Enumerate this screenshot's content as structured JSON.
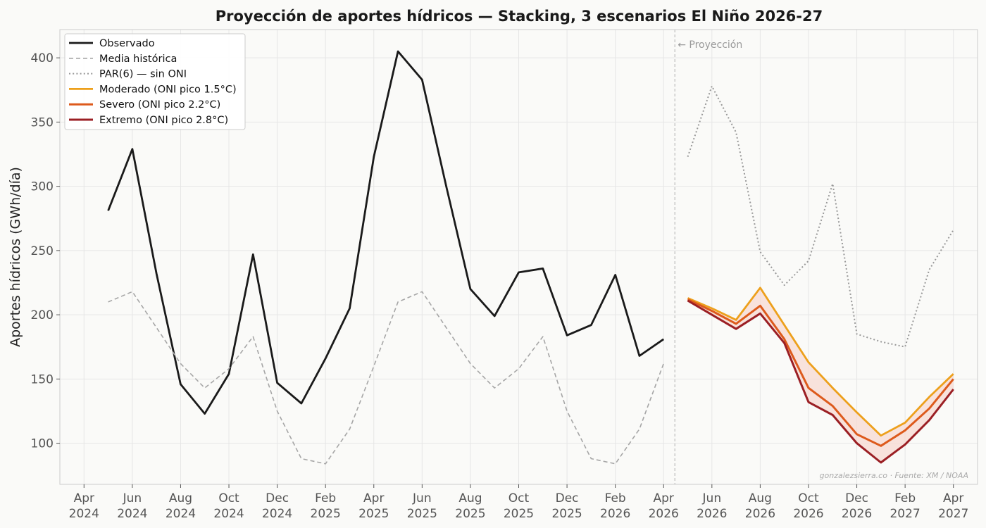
{
  "chart_data": {
    "type": "line",
    "title": "Proyección de aportes hídricos — Stacking, 3 escenarios El Niño 2026-27",
    "xlabel": "",
    "ylabel": "Aportes hídricos (GWh/día)",
    "ylim": [
      68,
      422
    ],
    "xlim": [
      "2024-03",
      "2027-05"
    ],
    "yticks": [
      100,
      150,
      200,
      250,
      300,
      350,
      400
    ],
    "xticks": [
      {
        "date": "2024-04",
        "month": "Apr",
        "year": "2024"
      },
      {
        "date": "2024-06",
        "month": "Jun",
        "year": "2024"
      },
      {
        "date": "2024-08",
        "month": "Aug",
        "year": "2024"
      },
      {
        "date": "2024-10",
        "month": "Oct",
        "year": "2024"
      },
      {
        "date": "2024-12",
        "month": "Dec",
        "year": "2024"
      },
      {
        "date": "2025-02",
        "month": "Feb",
        "year": "2025"
      },
      {
        "date": "2025-04",
        "month": "Apr",
        "year": "2025"
      },
      {
        "date": "2025-06",
        "month": "Jun",
        "year": "2025"
      },
      {
        "date": "2025-08",
        "month": "Aug",
        "year": "2025"
      },
      {
        "date": "2025-10",
        "month": "Oct",
        "year": "2025"
      },
      {
        "date": "2025-12",
        "month": "Dec",
        "year": "2025"
      },
      {
        "date": "2026-02",
        "month": "Feb",
        "year": "2026"
      },
      {
        "date": "2026-04",
        "month": "Apr",
        "year": "2026"
      },
      {
        "date": "2026-06",
        "month": "Jun",
        "year": "2026"
      },
      {
        "date": "2026-08",
        "month": "Aug",
        "year": "2026"
      },
      {
        "date": "2026-10",
        "month": "Oct",
        "year": "2026"
      },
      {
        "date": "2026-12",
        "month": "Dec",
        "year": "2026"
      },
      {
        "date": "2027-02",
        "month": "Feb",
        "year": "2027"
      },
      {
        "date": "2027-04",
        "month": "Apr",
        "year": "2027"
      }
    ],
    "grid": true,
    "legend_position": "top-left",
    "projection_start": "2026-04-15",
    "projection_label": "← Proyección",
    "credit": "gonzalezsierra.co · Fuente: XM / NOAA",
    "band": {
      "between": [
        "Moderado (ONI pico 1.5°C)",
        "Extremo (ONI pico 2.8°C)"
      ],
      "color": "#f7d9d3"
    },
    "series": [
      {
        "name": "Observado",
        "color": "#1a1a1a",
        "style": "solid",
        "width": 2.8,
        "x": [
          "2024-05",
          "2024-06",
          "2024-07",
          "2024-08",
          "2024-09",
          "2024-10",
          "2024-11",
          "2024-12",
          "2025-01",
          "2025-02",
          "2025-03",
          "2025-04",
          "2025-05",
          "2025-06",
          "2025-07",
          "2025-08",
          "2025-09",
          "2025-10",
          "2025-11",
          "2025-12",
          "2026-01",
          "2026-02",
          "2026-03",
          "2026-04"
        ],
        "y": [
          281,
          329,
          232,
          146,
          123,
          154,
          247,
          147,
          131,
          166,
          205,
          323,
          405,
          383,
          300,
          220,
          199,
          233,
          236,
          184,
          192,
          231,
          168,
          181
        ]
      },
      {
        "name": "Media histórica",
        "color": "#a6a6a6",
        "style": "dashed",
        "width": 1.6,
        "x": [
          "2024-05",
          "2024-06",
          "2024-07",
          "2024-08",
          "2024-09",
          "2024-10",
          "2024-11",
          "2024-12",
          "2025-01",
          "2025-02",
          "2025-03",
          "2025-04",
          "2025-05",
          "2025-06",
          "2025-07",
          "2025-08",
          "2025-09",
          "2025-10",
          "2025-11",
          "2025-12",
          "2026-01",
          "2026-02",
          "2026-03",
          "2026-04"
        ],
        "y": [
          210,
          218,
          190,
          162,
          143,
          158,
          183,
          125,
          88,
          84,
          111,
          160,
          210,
          218,
          190,
          162,
          143,
          158,
          183,
          125,
          88,
          84,
          111,
          162
        ]
      },
      {
        "name": "PAR(6) — sin ONI",
        "color": "#999999",
        "style": "dotted",
        "width": 2.0,
        "x": [
          "2026-05",
          "2026-06",
          "2026-07",
          "2026-08",
          "2026-09",
          "2026-10",
          "2026-11",
          "2026-12",
          "2027-01",
          "2027-02",
          "2027-03",
          "2027-04"
        ],
        "y": [
          323,
          378,
          342,
          249,
          223,
          242,
          302,
          185,
          179,
          175,
          235,
          266
        ]
      },
      {
        "name": "Moderado (ONI pico 1.5°C)",
        "color": "#eda01c",
        "style": "solid",
        "width": 2.8,
        "x": [
          "2026-05",
          "2026-06",
          "2026-07",
          "2026-08",
          "2026-09",
          "2026-10",
          "2026-11",
          "2026-12",
          "2027-01",
          "2027-02",
          "2027-03",
          "2027-04"
        ],
        "y": [
          213,
          205,
          196,
          221,
          192,
          163,
          143,
          124,
          106,
          116,
          136,
          154
        ]
      },
      {
        "name": "Severo (ONI pico 2.2°C)",
        "color": "#dd5a1c",
        "style": "solid",
        "width": 3.0,
        "x": [
          "2026-05",
          "2026-06",
          "2026-07",
          "2026-08",
          "2026-09",
          "2026-10",
          "2026-11",
          "2026-12",
          "2027-01",
          "2027-02",
          "2027-03",
          "2027-04"
        ],
        "y": [
          212,
          203,
          193,
          207,
          181,
          143,
          129,
          107,
          98,
          110,
          127,
          150
        ]
      },
      {
        "name": "Extremo (ONI pico 2.8°C)",
        "color": "#9b1f24",
        "style": "solid",
        "width": 3.0,
        "x": [
          "2026-05",
          "2026-06",
          "2026-07",
          "2026-08",
          "2026-09",
          "2026-10",
          "2026-11",
          "2026-12",
          "2027-01",
          "2027-02",
          "2027-03",
          "2027-04"
        ],
        "y": [
          211,
          200,
          189,
          201,
          178,
          132,
          122,
          100,
          85,
          99,
          118,
          142
        ]
      }
    ]
  }
}
